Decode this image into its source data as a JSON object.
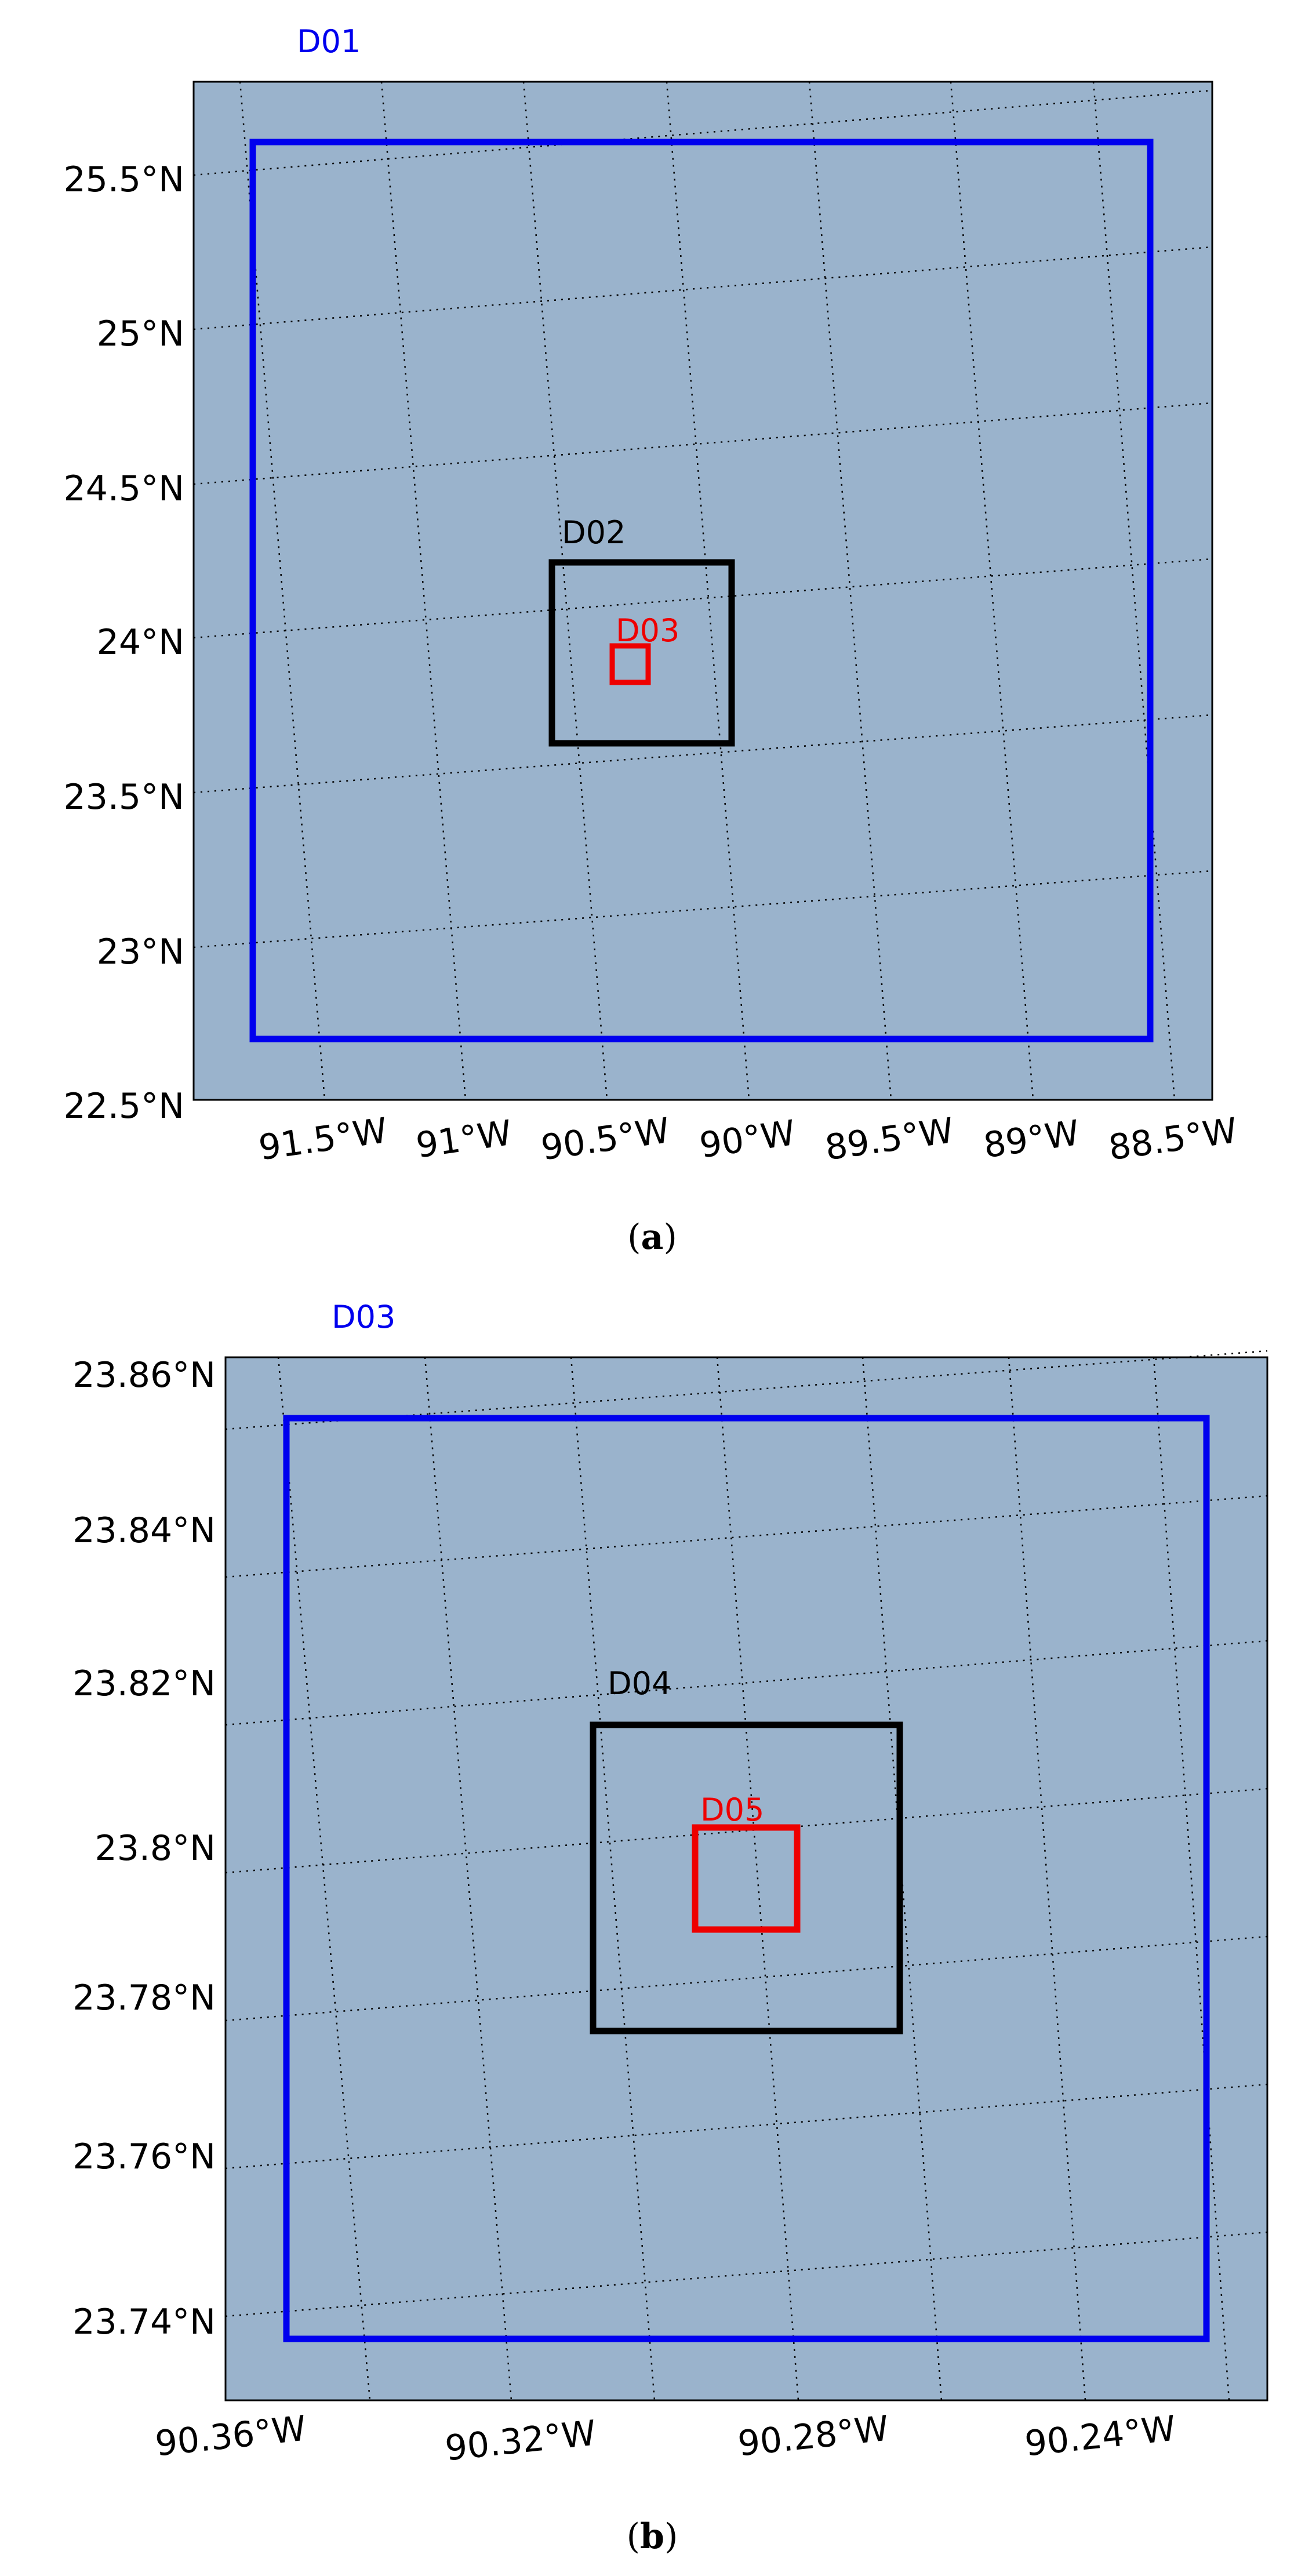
{
  "panels": [
    {
      "id": "a",
      "caption_letter": "a",
      "caption_open": "(",
      "caption_close": ")",
      "sea_color": "#9ab3cc",
      "top_label": {
        "text": "D01",
        "color": "#0000ee"
      },
      "lat_ticks": [
        "25.5°N",
        "25°N",
        "24.5°N",
        "24°N",
        "23.5°N",
        "23°N",
        "22.5°N"
      ],
      "lon_ticks": [
        "91.5°W",
        "91°W",
        "90.5°W",
        "90°W",
        "89.5°W",
        "89°W",
        "88.5°W"
      ],
      "domains": [
        {
          "name": "D01",
          "color": "#0000ee"
        },
        {
          "name": "D02",
          "color": "#000000",
          "label": "D02"
        },
        {
          "name": "D03",
          "color": "#ee0000",
          "label": "D03"
        }
      ]
    },
    {
      "id": "b",
      "caption_letter": "b",
      "caption_open": "(",
      "caption_close": ")",
      "sea_color": "#9ab3cc",
      "top_label": {
        "text": "D03",
        "color": "#0000ee"
      },
      "lat_ticks": [
        "23.86°N",
        "23.84°N",
        "23.82°N",
        "23.8°N",
        "23.78°N",
        "23.76°N",
        "23.74°N"
      ],
      "lon_ticks": [
        "90.36°W",
        "90.32°W",
        "90.28°W",
        "90.24°W"
      ],
      "domains": [
        {
          "name": "D03",
          "color": "#0000ee"
        },
        {
          "name": "D04",
          "color": "#000000",
          "label": "D04"
        },
        {
          "name": "D05",
          "color": "#ee0000",
          "label": "D05"
        }
      ]
    }
  ]
}
